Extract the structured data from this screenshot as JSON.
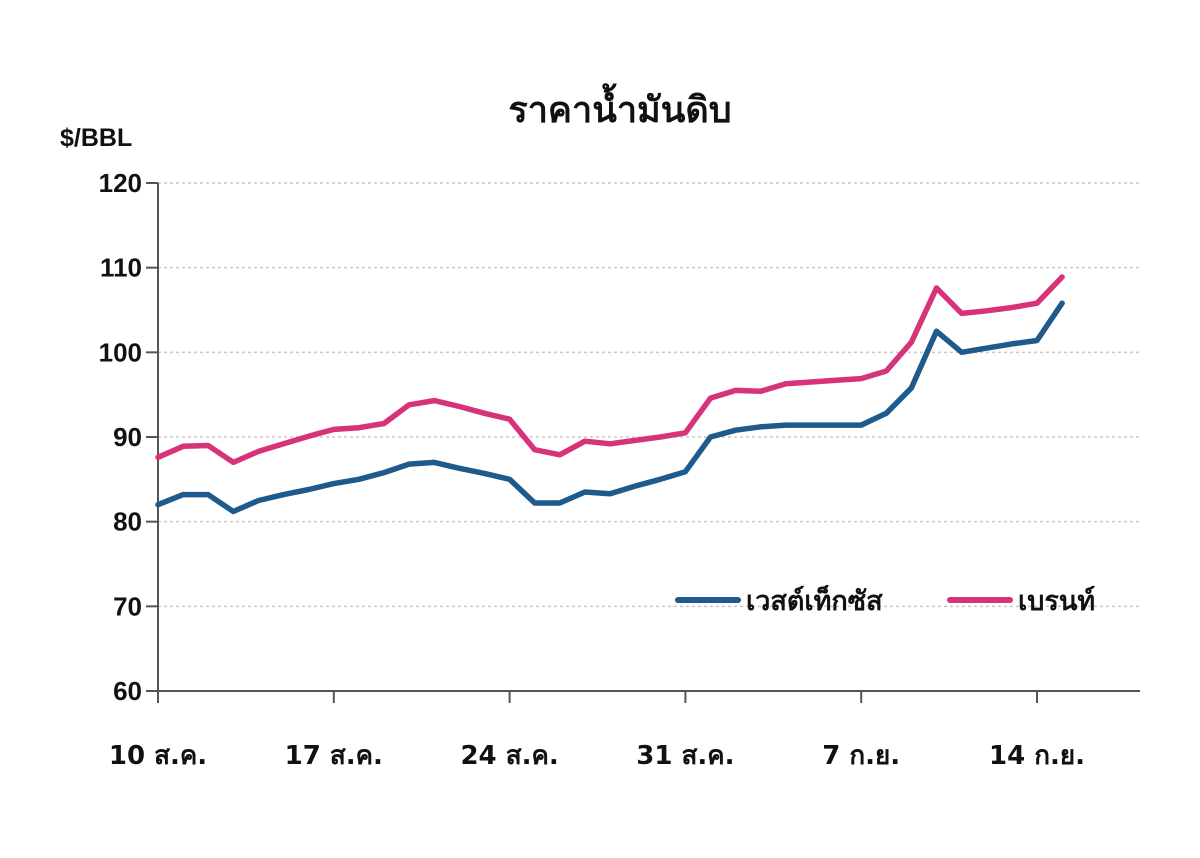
{
  "chart_data": {
    "type": "line",
    "title": "ราคาน้ำมันดิบ",
    "ylabel": "$/BBL",
    "xlabel": "",
    "ylim": [
      60,
      120
    ],
    "yticks": [
      60,
      70,
      80,
      90,
      100,
      110,
      120
    ],
    "xlim": [
      0,
      36
    ],
    "xticks": [
      {
        "x": 0,
        "label": "10 ส.ค."
      },
      {
        "x": 7,
        "label": "17 ส.ค."
      },
      {
        "x": 14,
        "label": "24 ส.ค."
      },
      {
        "x": 21,
        "label": "31 ส.ค."
      },
      {
        "x": 28,
        "label": "7 ก.ย."
      },
      {
        "x": 35,
        "label": "14 ก.ย."
      }
    ],
    "grid": true,
    "legend_position": "bottom-right",
    "series": [
      {
        "name": "เวสต์เท็กซัส",
        "color": "#1f5a8c",
        "points": [
          [
            0,
            82.0
          ],
          [
            1,
            83.2
          ],
          [
            2,
            83.2
          ],
          [
            3,
            81.2
          ],
          [
            4,
            82.5
          ],
          [
            5,
            83.2
          ],
          [
            6,
            83.8
          ],
          [
            7,
            84.5
          ],
          [
            8,
            85.0
          ],
          [
            9,
            85.8
          ],
          [
            10,
            86.8
          ],
          [
            11,
            87.0
          ],
          [
            12,
            86.3
          ],
          [
            13,
            85.7
          ],
          [
            14,
            85.0
          ],
          [
            15,
            82.2
          ],
          [
            16,
            82.2
          ],
          [
            17,
            83.5
          ],
          [
            18,
            83.3
          ],
          [
            19,
            84.2
          ],
          [
            20,
            85.0
          ],
          [
            21,
            85.9
          ],
          [
            22,
            90.0
          ],
          [
            23,
            90.8
          ],
          [
            24,
            91.2
          ],
          [
            25,
            91.4
          ],
          [
            26,
            91.4
          ],
          [
            27,
            91.4
          ],
          [
            28,
            91.4
          ],
          [
            29,
            92.8
          ],
          [
            30,
            95.8
          ],
          [
            31,
            102.5
          ],
          [
            32,
            100.0
          ],
          [
            33,
            100.5
          ],
          [
            34,
            101.0
          ],
          [
            35,
            101.4
          ],
          [
            36,
            105.8
          ]
        ]
      },
      {
        "name": "เบรนท์",
        "color": "#d6337a",
        "points": [
          [
            0,
            87.6
          ],
          [
            1,
            88.9
          ],
          [
            2,
            89.0
          ],
          [
            3,
            87.0
          ],
          [
            4,
            88.3
          ],
          [
            5,
            89.2
          ],
          [
            6,
            90.1
          ],
          [
            7,
            90.9
          ],
          [
            8,
            91.1
          ],
          [
            9,
            91.6
          ],
          [
            10,
            93.8
          ],
          [
            11,
            94.3
          ],
          [
            12,
            93.6
          ],
          [
            13,
            92.8
          ],
          [
            14,
            92.1
          ],
          [
            15,
            88.5
          ],
          [
            16,
            87.9
          ],
          [
            17,
            89.5
          ],
          [
            18,
            89.2
          ],
          [
            19,
            89.6
          ],
          [
            20,
            90.0
          ],
          [
            21,
            90.5
          ],
          [
            22,
            94.6
          ],
          [
            23,
            95.5
          ],
          [
            24,
            95.4
          ],
          [
            25,
            96.3
          ],
          [
            26,
            96.5
          ],
          [
            27,
            96.7
          ],
          [
            28,
            96.9
          ],
          [
            29,
            97.8
          ],
          [
            30,
            101.2
          ],
          [
            31,
            107.6
          ],
          [
            32,
            104.6
          ],
          [
            33,
            104.9
          ],
          [
            34,
            105.3
          ],
          [
            35,
            105.8
          ],
          [
            36,
            108.9
          ]
        ]
      }
    ]
  }
}
